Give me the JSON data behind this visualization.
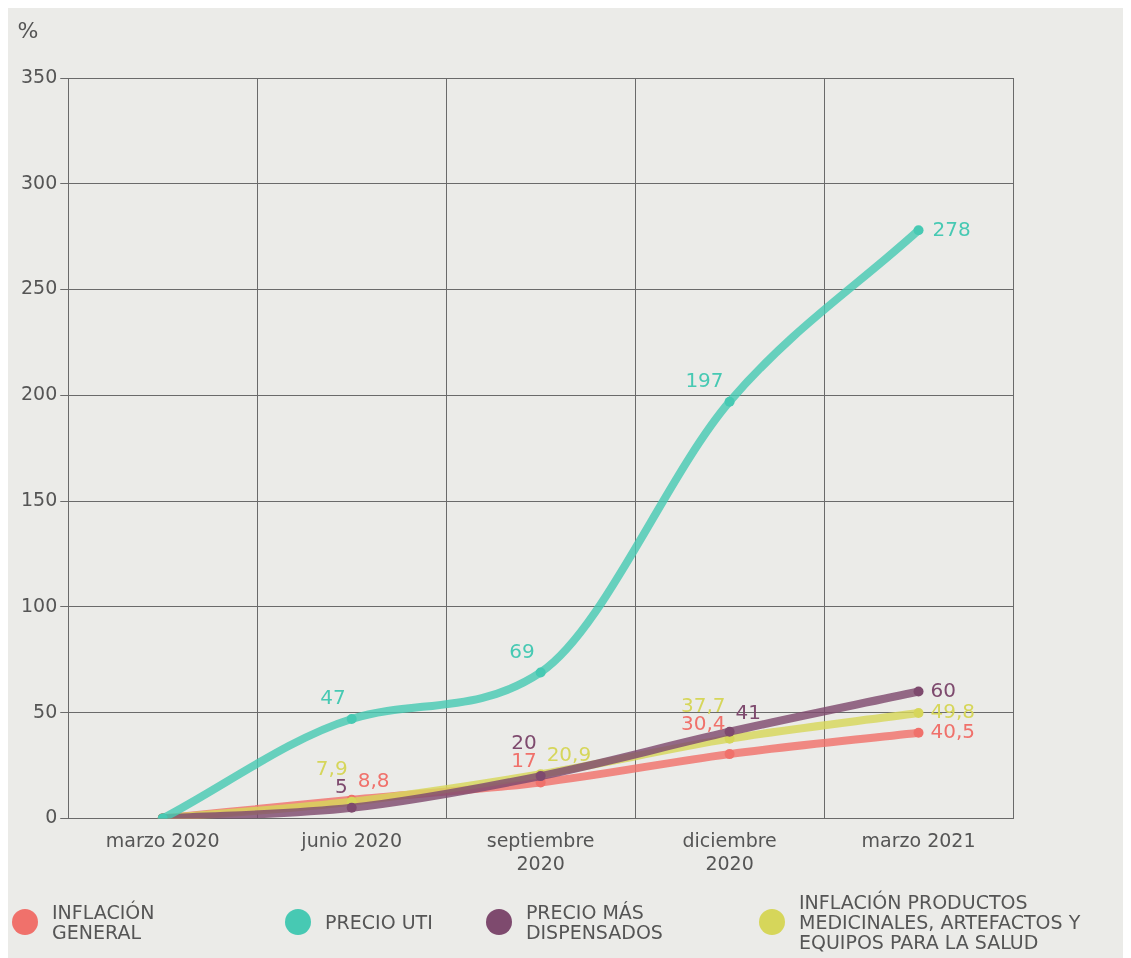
{
  "chart_data": {
    "type": "line",
    "ylabel": "%",
    "categories": [
      "marzo 2020",
      "junio 2020",
      "septiembre 2020",
      "diciembre 2020",
      "marzo 2021"
    ],
    "ylim": [
      0,
      350
    ],
    "yticks": [
      0,
      50,
      100,
      150,
      200,
      250,
      300,
      350
    ],
    "grid": true,
    "legend": "bottom",
    "marker": "circle",
    "line_style": "solid",
    "series": [
      {
        "name": "PRECIO UTI",
        "color": "#47c9b3",
        "values": [
          0,
          47,
          69,
          197,
          278
        ],
        "value_labels": [
          null,
          "47",
          "69",
          "197",
          "278"
        ]
      },
      {
        "name": "PRECIO MÁS DISPENSADOS",
        "color": "#7e4a6e",
        "values": [
          0,
          5,
          20,
          41,
          60
        ],
        "value_labels": [
          null,
          "5",
          "20",
          "41",
          "60"
        ]
      },
      {
        "name": "INFLACIÓN PRODUCTOS MEDICINALES, ARTEFACTOS Y EQUIPOS PARA LA SALUD",
        "color": "#d6d65a",
        "values": [
          0,
          7.9,
          20.9,
          37.7,
          49.8
        ],
        "value_labels": [
          null,
          "7,9",
          "20,9",
          "37,7",
          "49,8"
        ]
      },
      {
        "name": "INFLACIÓN GENERAL",
        "color": "#f0716b",
        "values": [
          0,
          8.8,
          17,
          30.4,
          40.5
        ],
        "value_labels": [
          null,
          "8,8",
          "17",
          "30,4",
          "40,5"
        ]
      }
    ]
  }
}
